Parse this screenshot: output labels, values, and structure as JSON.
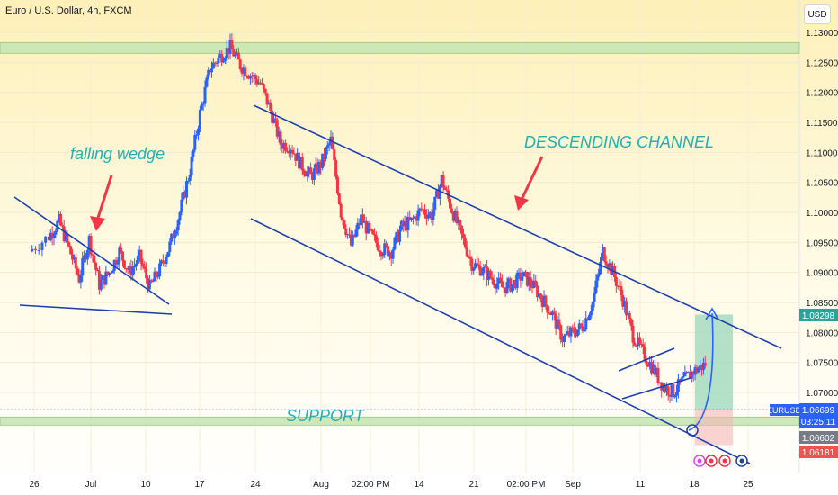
{
  "header": {
    "title": "Euro / U.S. Dollar, 4h, FXCM",
    "currency": "USD"
  },
  "chart_data": {
    "type": "candlestick",
    "symbol": "EURUSD",
    "yaxis": {
      "range": [
        1.059,
        1.131
      ],
      "ticks": [
        "1.13000",
        "1.12500",
        "1.12000",
        "1.11500",
        "1.11000",
        "1.10500",
        "1.10000",
        "1.09500",
        "1.09000",
        "1.08500",
        "1.08000",
        "1.07500",
        "1.07000"
      ]
    },
    "xaxis": {
      "ticks": [
        "26",
        "Jul",
        "10",
        "17",
        "24",
        "Aug",
        "02:00 PM",
        "14",
        "21",
        "02:00 PM",
        "Sep",
        "11",
        "18",
        "25"
      ]
    },
    "price_tags": [
      {
        "label": "1.08298",
        "value": 1.08298,
        "color": "#26a69a"
      },
      {
        "label": "EURUSD",
        "value": 1.06699,
        "color": "#2962ff",
        "symbol_tag": true
      },
      {
        "label": "1.06699",
        "value": 1.06699,
        "color": "#2962ff"
      },
      {
        "label": "03:25:11",
        "value": 1.0657,
        "color": "#2962ff"
      },
      {
        "label": "1.06602",
        "value": 1.0645,
        "color": "#787b86"
      },
      {
        "label": "1.06181",
        "value": 1.06181,
        "color": "#ef5350"
      }
    ],
    "annotations": [
      {
        "text": "falling wedge"
      },
      {
        "text": "DESCENDING CHANNEL"
      },
      {
        "text": "SUPPORT"
      }
    ],
    "key_prices": [
      {
        "value": 1.0998,
        "at": "Jun 26"
      },
      {
        "value": 1.1275,
        "at": "Jul 17"
      },
      {
        "value": 1.1149,
        "at": "Jul 27"
      },
      {
        "value": 1.0915,
        "at": "Aug 3"
      },
      {
        "value": 1.1065,
        "at": "Aug 10"
      },
      {
        "value": 1.0766,
        "at": "Aug 25"
      },
      {
        "value": 1.0945,
        "at": "Aug 30"
      },
      {
        "value": 1.0686,
        "at": "Sep 7"
      },
      {
        "value": 1.0768,
        "at": "Sep 12"
      },
      {
        "value": 1.0632,
        "at": "Sep 14"
      },
      {
        "value": 1.067,
        "at": "Sep 18"
      }
    ],
    "support_zone": [
      1.065,
      1.0668
    ],
    "resistance_zone": [
      1.1268,
      1.128
    ],
    "channel": {
      "upper": [
        1.1172,
        1.0775
      ],
      "lower": [
        1.1001,
        1.0595
      ]
    },
    "projection": {
      "target": 1.08298,
      "stop": 1.06181,
      "entry": 1.06602
    }
  }
}
